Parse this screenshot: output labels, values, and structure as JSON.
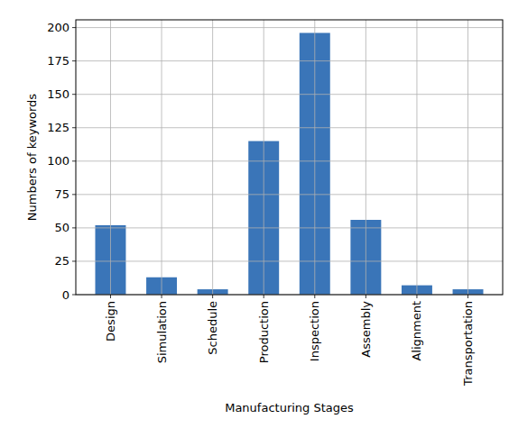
{
  "chart_data": {
    "type": "bar",
    "x_label": "Manufacturing Stages",
    "y_label": "Numbers of keywords",
    "categories": [
      "Design",
      "Simulation",
      "Schedule",
      "Production",
      "Inspection",
      "Assembly",
      "Alignment",
      "Transportation"
    ],
    "values": [
      52,
      13,
      4,
      115,
      196,
      56,
      7,
      4
    ],
    "color": "#3a75b8",
    "ylim": [
      0,
      205.8
    ],
    "yticks": [
      0,
      25,
      50,
      75,
      100,
      125,
      150,
      175,
      200
    ],
    "grid": true
  }
}
